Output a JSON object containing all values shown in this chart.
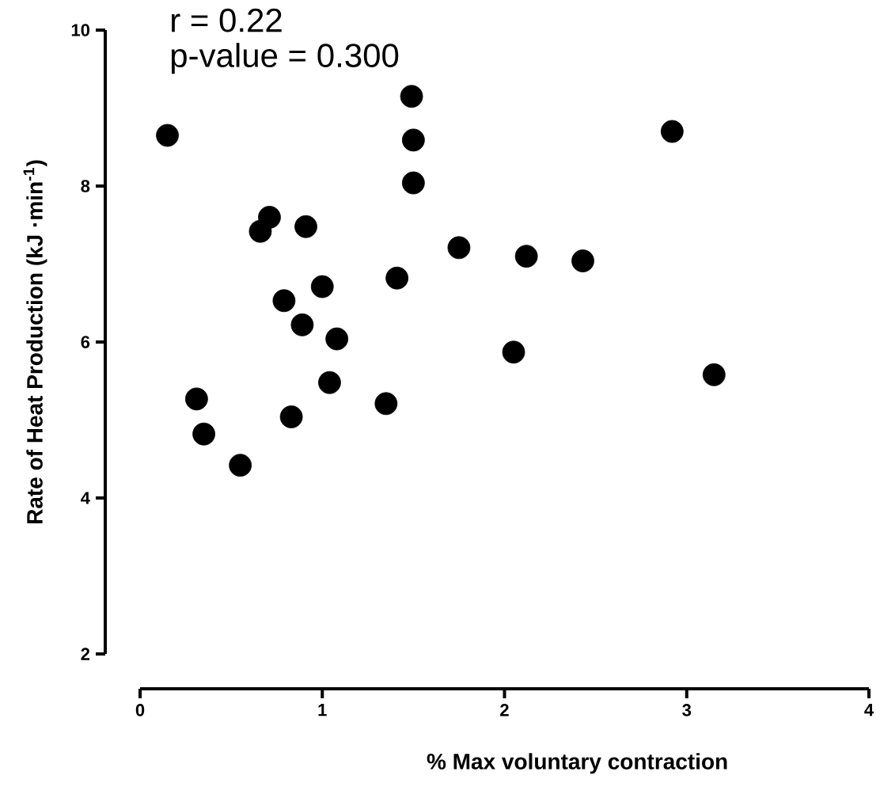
{
  "chart_data": {
    "type": "scatter",
    "xlabel": "% Max voluntary contraction",
    "ylabel": "Rate of Heat Production (kJ ·min$^{-1}$)",
    "annotations": [
      "r = 0.22",
      "p-value = 0.300"
    ],
    "x": [
      0.15,
      1.49,
      1.5,
      1.5,
      2.92,
      0.71,
      0.66,
      0.91,
      1.75,
      2.12,
      2.43,
      1.41,
      1.0,
      0.79,
      0.89,
      1.08,
      2.05,
      3.15,
      0.31,
      1.04,
      1.35,
      0.83,
      0.35,
      0.55
    ],
    "values": [
      8.65,
      9.15,
      8.59,
      8.04,
      8.7,
      7.6,
      7.42,
      7.48,
      7.21,
      7.1,
      7.04,
      6.82,
      6.71,
      6.53,
      6.22,
      6.04,
      5.87,
      5.58,
      5.27,
      5.48,
      5.21,
      5.04,
      4.82,
      4.42
    ],
    "color": "#000000",
    "marker": "circle",
    "xlim": [
      0,
      4
    ],
    "ylim": [
      2,
      10
    ],
    "xticks": [
      0,
      1,
      2,
      3,
      4
    ],
    "yticks": [
      2,
      4,
      6,
      8,
      10
    ]
  }
}
